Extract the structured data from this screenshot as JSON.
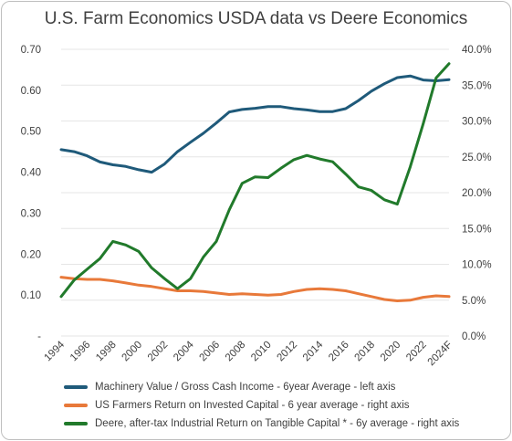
{
  "chart_data": {
    "type": "line",
    "title": "U.S. Farm Economics USDA data vs Deere Economics",
    "colors": {
      "left": "#1f5a7a",
      "right1": "#e8793a",
      "right2": "#217a2b"
    },
    "left_axis": {
      "ylim": [
        0,
        0.7
      ],
      "ticks": [
        "-",
        "0.10",
        "0.20",
        "0.30",
        "0.40",
        "0.50",
        "0.60",
        "0.70"
      ]
    },
    "right_axis": {
      "ylim": [
        0,
        40
      ],
      "ticks": [
        "0.0%",
        "5.0%",
        "10.0%",
        "15.0%",
        "20.0%",
        "25.0%",
        "30.0%",
        "35.0%",
        "40.0%"
      ]
    },
    "x_tick_labels": [
      "1994",
      "1996",
      "1998",
      "2000",
      "2002",
      "2004",
      "2006",
      "2008",
      "2010",
      "2012",
      "2014",
      "2016",
      "2018",
      "2020",
      "2022",
      "2024F"
    ],
    "x": [
      "1994",
      "1995",
      "1996",
      "1997",
      "1998",
      "1999",
      "2000",
      "2001",
      "2002",
      "2003",
      "2004",
      "2005",
      "2006",
      "2007",
      "2008",
      "2009",
      "2010",
      "2011",
      "2012",
      "2013",
      "2014",
      "2015",
      "2016",
      "2017",
      "2018",
      "2019",
      "2020",
      "2021",
      "2022",
      "2023",
      "2024F"
    ],
    "series": [
      {
        "name": "Machinery Value / Gross Cash Income - 6year Average - left axis",
        "axis": "left",
        "values": [
          0.455,
          0.45,
          0.44,
          0.425,
          0.418,
          0.414,
          0.406,
          0.4,
          0.42,
          0.45,
          0.473,
          0.495,
          0.52,
          0.547,
          0.553,
          0.556,
          0.56,
          0.56,
          0.555,
          0.552,
          0.548,
          0.548,
          0.555,
          0.575,
          0.598,
          0.616,
          0.631,
          0.635,
          0.625,
          0.623,
          0.626
        ]
      },
      {
        "name": "US Farmers Return on Invested Capital - 6 year average - right axis",
        "axis": "right",
        "values": [
          8.2,
          8.0,
          7.9,
          7.9,
          7.7,
          7.4,
          7.1,
          6.9,
          6.6,
          6.3,
          6.3,
          6.2,
          6.0,
          5.8,
          5.9,
          5.8,
          5.7,
          5.8,
          6.2,
          6.5,
          6.6,
          6.5,
          6.3,
          5.9,
          5.5,
          5.1,
          4.9,
          5.0,
          5.4,
          5.6,
          5.5
        ]
      },
      {
        "name": "Deere, after-tax Industrial Return on Tangible Capital * - 6y average - right axis",
        "axis": "right",
        "values": [
          5.5,
          7.8,
          9.3,
          10.8,
          13.2,
          12.7,
          11.8,
          9.5,
          8.0,
          6.6,
          8.0,
          11.0,
          13.2,
          17.6,
          21.3,
          22.2,
          22.1,
          23.4,
          24.6,
          25.2,
          24.7,
          24.3,
          22.6,
          20.8,
          20.3,
          19.0,
          18.4,
          23.6,
          29.6,
          36.0,
          38.0
        ]
      }
    ]
  }
}
